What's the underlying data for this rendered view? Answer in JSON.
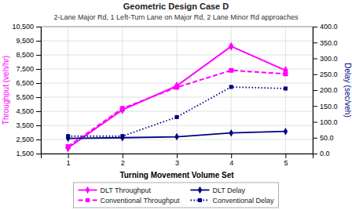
{
  "chart_data": {
    "type": "line",
    "title": "Geometric Design Case D",
    "subtitle": "2-Lane Major Rd, 1 Left-Turn Lane on Major Rd, 2 Lane Minor Rd approaches",
    "xlabel": "Turning Movement Volume Set",
    "ylabel": "Throughput (veh/hr)",
    "y2label": "Delay (sec/veh)",
    "x": [
      1,
      2,
      3,
      4,
      5
    ],
    "xlim": [
      0.5,
      5.5
    ],
    "xticks": [
      1,
      2,
      3,
      4,
      5
    ],
    "ylim": [
      1500,
      10500
    ],
    "yticks": [
      {
        "value": 1500,
        "label": "1,500"
      },
      {
        "value": 2500,
        "label": "2,500"
      },
      {
        "value": 3500,
        "label": "3,500"
      },
      {
        "value": 4500,
        "label": "4,500"
      },
      {
        "value": 5500,
        "label": "5,500"
      },
      {
        "value": 6500,
        "label": "6,500"
      },
      {
        "value": 7500,
        "label": "7,500"
      },
      {
        "value": 8500,
        "label": "8,500"
      },
      {
        "value": 9500,
        "label": "9,500"
      },
      {
        "value": 10500,
        "label": "10,500"
      }
    ],
    "y2lim": [
      0.0,
      400.0
    ],
    "y2ticks": [
      {
        "value": 0,
        "label": "0.0"
      },
      {
        "value": 50,
        "label": "50.0"
      },
      {
        "value": 100,
        "label": "100.0"
      },
      {
        "value": 150,
        "label": "150.0"
      },
      {
        "value": 200,
        "label": "200.0"
      },
      {
        "value": 250,
        "label": "250.0"
      },
      {
        "value": 300,
        "label": "300.0"
      },
      {
        "value": 350,
        "label": "350.0"
      },
      {
        "value": 400,
        "label": "400.0"
      }
    ],
    "grid": true,
    "legend": "bottom",
    "series": [
      {
        "name": "DLT Throughput",
        "color": "#FF00FF",
        "marker": "diamond",
        "line_style": "solid",
        "values": [
          1900,
          4600,
          6300,
          9100,
          7400
        ]
      },
      {
        "name": "Conventional Throughput",
        "color": "#FF00FF",
        "marker": "square",
        "line_style": "dashed",
        "values": [
          2000,
          4700,
          6200,
          7400,
          7150
        ]
      },
      {
        "name": "DLT Delay",
        "color": "#000080",
        "marker": "diamond",
        "line_style": "solid",
        "axis": "y2",
        "values": [
          48,
          50,
          53,
          65,
          70
        ]
      },
      {
        "name": "Conventional Delay",
        "color": "#000080",
        "marker": "square",
        "line_style": "dotted",
        "axis": "y2",
        "values": [
          55,
          55,
          115,
          210,
          205
        ]
      }
    ]
  }
}
